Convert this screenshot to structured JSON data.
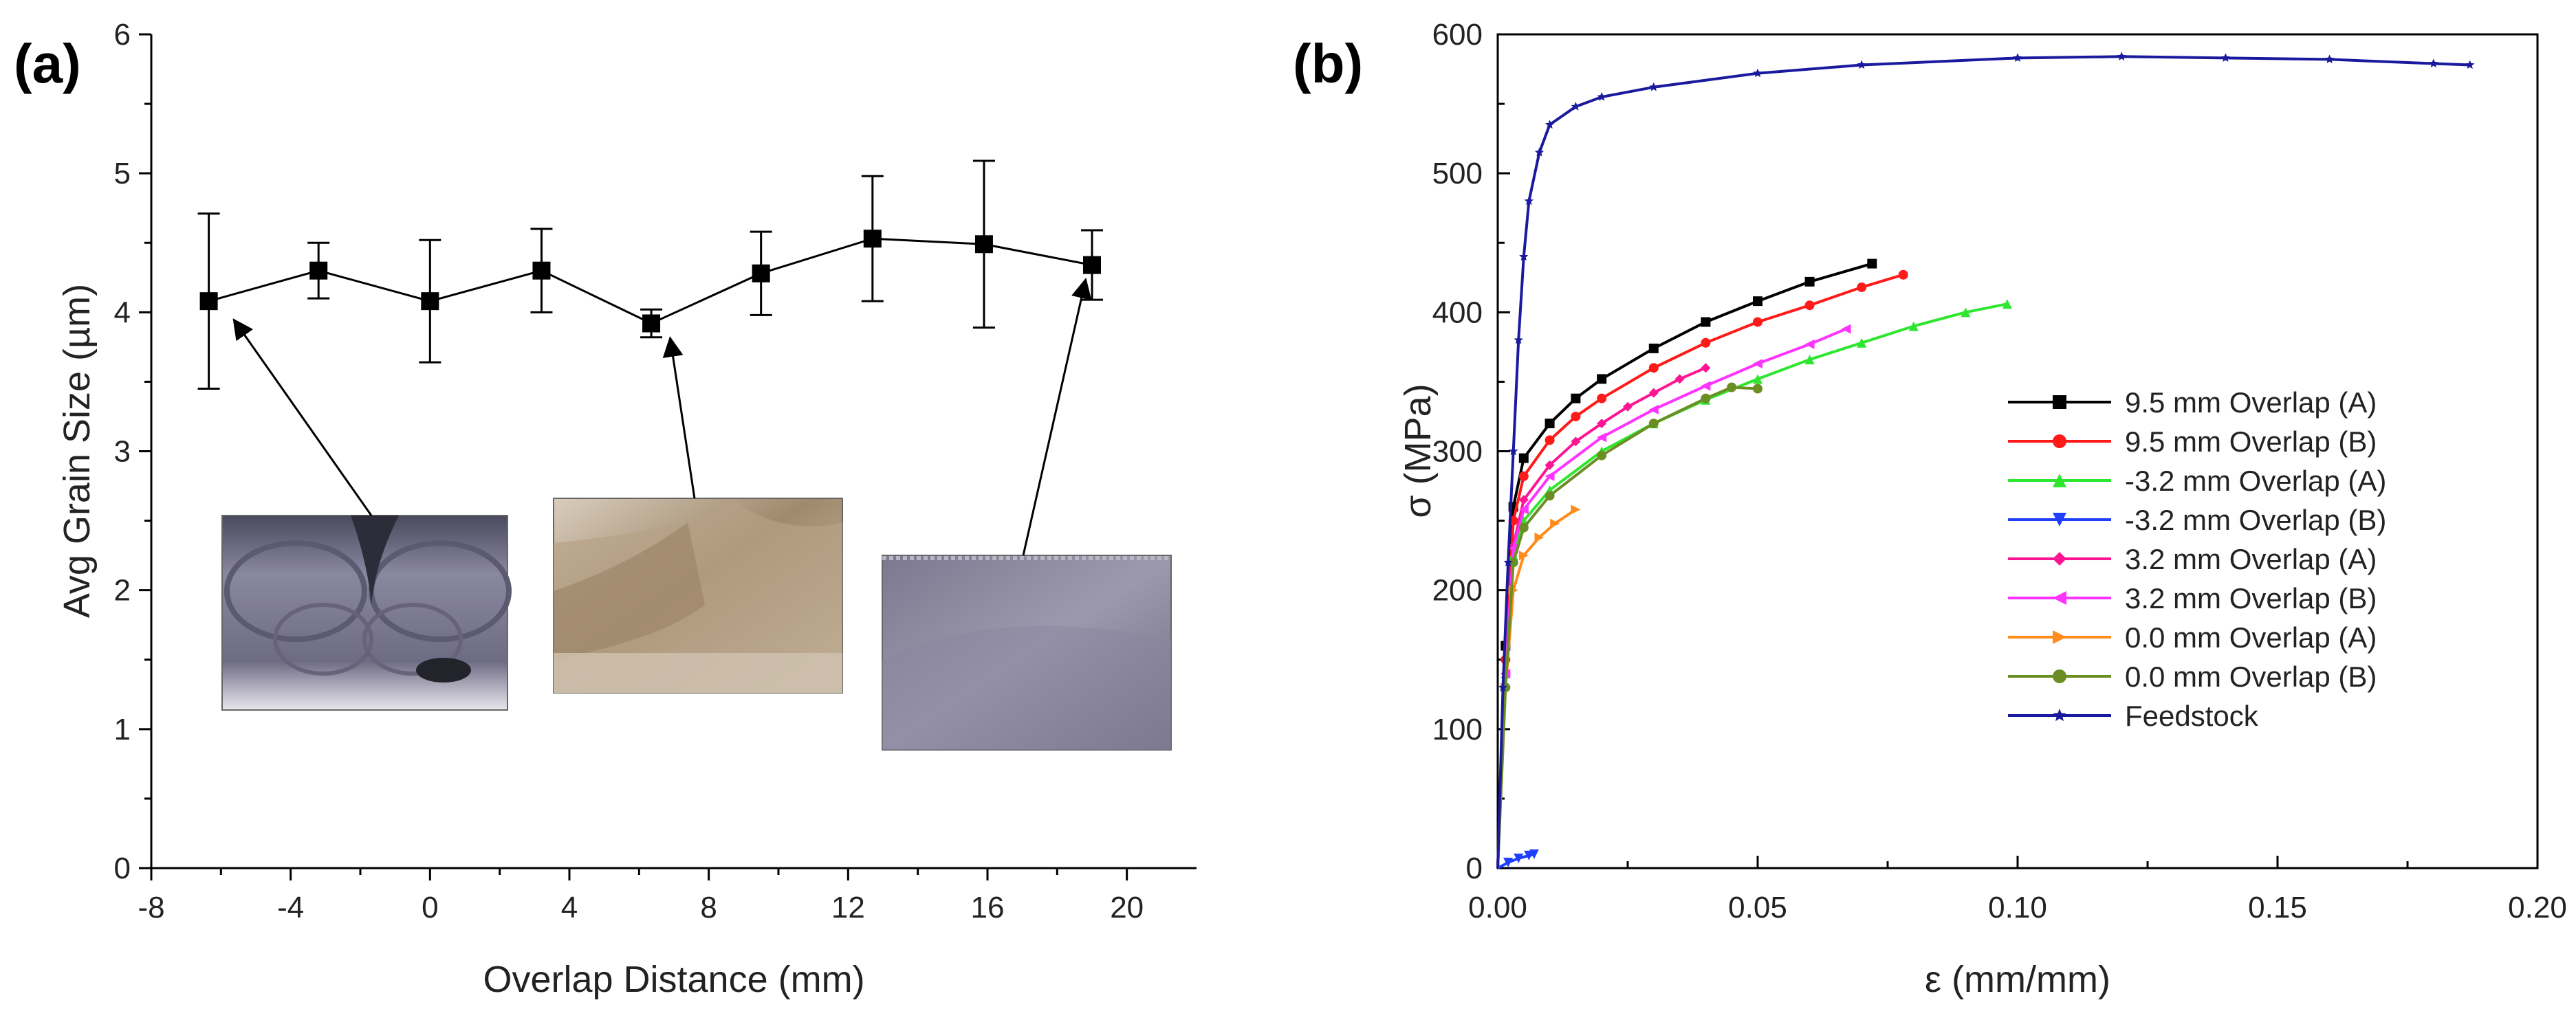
{
  "chart_data": [
    {
      "panel": "(a)",
      "type": "line",
      "xlabel": "Overlap Distance (mm)",
      "ylabel": "Avg Grain Size (µm)",
      "xlim": [
        -8,
        22
      ],
      "ylim": [
        0,
        6
      ],
      "xticks": [
        -8,
        -4,
        0,
        4,
        8,
        12,
        16,
        20
      ],
      "yticks": [
        0,
        1,
        2,
        3,
        4,
        5,
        6
      ],
      "grid": false,
      "series": [
        {
          "name": "Avg Grain Size",
          "color": "#000000",
          "marker": "square",
          "x": [
            -6.35,
            -3.2,
            0.0,
            3.2,
            6.35,
            9.5,
            12.7,
            15.9,
            19.0
          ],
          "y": [
            4.08,
            4.3,
            4.08,
            4.3,
            3.92,
            4.28,
            4.53,
            4.49,
            4.34
          ],
          "error": [
            0.63,
            0.2,
            0.44,
            0.3,
            0.1,
            0.3,
            0.45,
            0.6,
            0.25
          ]
        }
      ],
      "insets": [
        {
          "name": "macrograph-left",
          "points_to_index": 0
        },
        {
          "name": "macrograph-middle",
          "points_to_index": 4
        },
        {
          "name": "macrograph-right",
          "points_to_index": 8
        }
      ]
    },
    {
      "panel": "(b)",
      "type": "line",
      "xlabel": "ε (mm/mm)",
      "ylabel": "σ (MPa)",
      "xlim": [
        0,
        0.2
      ],
      "ylim": [
        0,
        600
      ],
      "xticks": [
        0.0,
        0.05,
        0.1,
        0.15,
        0.2
      ],
      "xtick_labels": [
        "0.00",
        "0.05",
        "0.10",
        "0.15",
        "0.20"
      ],
      "yticks": [
        0,
        100,
        200,
        300,
        400,
        500,
        600
      ],
      "grid": false,
      "legend_position": "right-middle",
      "series": [
        {
          "name": "9.5 mm Overlap (A)",
          "color": "#000000",
          "marker": "square",
          "x": [
            0,
            0.0015,
            0.003,
            0.005,
            0.01,
            0.015,
            0.02,
            0.03,
            0.04,
            0.05,
            0.06,
            0.072
          ],
          "y": [
            0,
            160,
            260,
            295,
            320,
            338,
            352,
            374,
            393,
            408,
            422,
            435
          ]
        },
        {
          "name": "9.5 mm Overlap (B)",
          "color": "#ff1a1a",
          "marker": "circle",
          "x": [
            0,
            0.0015,
            0.003,
            0.005,
            0.01,
            0.015,
            0.02,
            0.03,
            0.04,
            0.05,
            0.06,
            0.07,
            0.078
          ],
          "y": [
            0,
            150,
            250,
            282,
            308,
            325,
            338,
            360,
            378,
            393,
            405,
            418,
            427
          ]
        },
        {
          "name": "-3.2 mm Overlap (A)",
          "color": "#2ee62e",
          "marker": "triangle-up",
          "x": [
            0,
            0.0015,
            0.003,
            0.005,
            0.01,
            0.02,
            0.03,
            0.04,
            0.05,
            0.06,
            0.07,
            0.08,
            0.09,
            0.098
          ],
          "y": [
            0,
            140,
            225,
            250,
            272,
            300,
            320,
            337,
            352,
            366,
            378,
            390,
            400,
            406
          ]
        },
        {
          "name": "-3.2 mm Overlap (B)",
          "color": "#1f3fff",
          "marker": "triangle-down",
          "x": [
            0,
            0.002,
            0.004,
            0.006,
            0.007
          ],
          "y": [
            0,
            4,
            7,
            9,
            10
          ]
        },
        {
          "name": "3.2 mm Overlap (A)",
          "color": "#ff1493",
          "marker": "diamond",
          "x": [
            0,
            0.0015,
            0.003,
            0.005,
            0.01,
            0.015,
            0.02,
            0.025,
            0.03,
            0.035,
            0.04
          ],
          "y": [
            0,
            140,
            232,
            265,
            290,
            307,
            320,
            332,
            342,
            352,
            360
          ]
        },
        {
          "name": "3.2 mm Overlap (B)",
          "color": "#ff33ff",
          "marker": "triangle-left",
          "x": [
            0,
            0.0015,
            0.003,
            0.005,
            0.01,
            0.02,
            0.03,
            0.04,
            0.05,
            0.06,
            0.067
          ],
          "y": [
            0,
            140,
            230,
            258,
            282,
            310,
            330,
            347,
            363,
            377,
            388
          ]
        },
        {
          "name": "0.0 mm Overlap (A)",
          "color": "#ff8c1a",
          "marker": "triangle-right",
          "x": [
            0,
            0.0015,
            0.003,
            0.005,
            0.008,
            0.011,
            0.015
          ],
          "y": [
            0,
            130,
            200,
            225,
            238,
            248,
            258
          ]
        },
        {
          "name": "0.0 mm Overlap (B)",
          "color": "#6b8e23",
          "marker": "circle",
          "x": [
            0,
            0.0015,
            0.003,
            0.005,
            0.01,
            0.02,
            0.03,
            0.04,
            0.045,
            0.05
          ],
          "y": [
            0,
            130,
            220,
            245,
            268,
            297,
            320,
            338,
            346,
            345
          ]
        },
        {
          "name": "Feedstock",
          "color": "#1a1a9e",
          "marker": "star",
          "x": [
            0,
            0.001,
            0.002,
            0.003,
            0.004,
            0.005,
            0.006,
            0.008,
            0.01,
            0.015,
            0.02,
            0.03,
            0.05,
            0.07,
            0.1,
            0.12,
            0.14,
            0.16,
            0.18,
            0.187
          ],
          "y": [
            0,
            130,
            220,
            300,
            380,
            440,
            480,
            515,
            535,
            548,
            555,
            562,
            572,
            578,
            583,
            584,
            583,
            582,
            579,
            578
          ]
        }
      ]
    }
  ]
}
